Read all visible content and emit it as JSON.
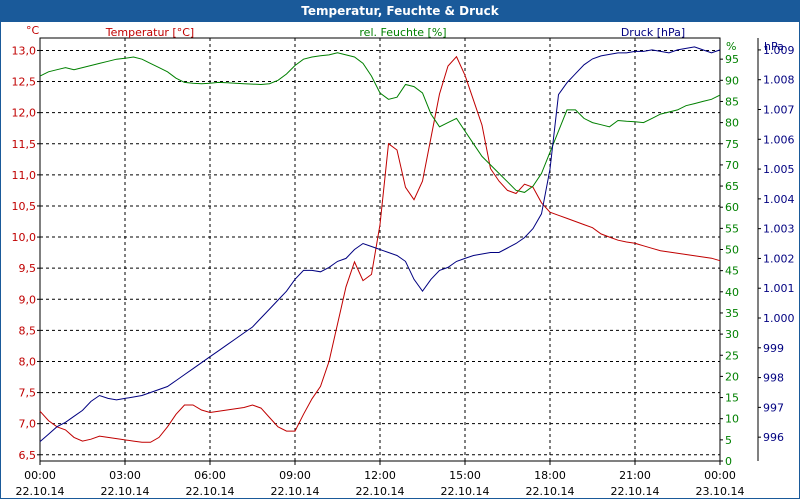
{
  "title": "Temperatur, Feuchte & Druck",
  "chart_data": {
    "type": "line",
    "title": "Temperatur, Feuchte & Druck",
    "x_ticks": [
      {
        "time": "00:00",
        "date": "22.10.14"
      },
      {
        "time": "03:00",
        "date": "22.10.14"
      },
      {
        "time": "06:00",
        "date": "22.10.14"
      },
      {
        "time": "09:00",
        "date": "22.10.14"
      },
      {
        "time": "12:00",
        "date": "22.10.14"
      },
      {
        "time": "15:00",
        "date": "22.10.14"
      },
      {
        "time": "18:00",
        "date": "22.10.14"
      },
      {
        "time": "21:00",
        "date": "22.10.14"
      },
      {
        "time": "00:00",
        "date": "23.10.14"
      }
    ],
    "xlim_hours": [
      0,
      24
    ],
    "grid": true,
    "axes": {
      "temperature": {
        "label": "Temperatur [°C]",
        "unit": "°C",
        "ylim": [
          6.4,
          13.2
        ],
        "ticks": [
          "6,5",
          "7,0",
          "7,5",
          "8,0",
          "8,5",
          "9,0",
          "9,5",
          "10,0",
          "10,5",
          "11,0",
          "11,5",
          "12,0",
          "12,5",
          "13,0"
        ],
        "color": "#c00000"
      },
      "humidity": {
        "label": "rel. Feuchte [%]",
        "unit": "%",
        "ylim": [
          0,
          100
        ],
        "ticks": [
          "0",
          "5",
          "10",
          "15",
          "20",
          "25",
          "30",
          "35",
          "40",
          "45",
          "50",
          "55",
          "60",
          "65",
          "70",
          "75",
          "80",
          "85",
          "90",
          "95"
        ],
        "color": "#008000"
      },
      "pressure": {
        "label": "Druck [hPa]",
        "unit": "hPa",
        "ylim": [
          995.2,
          1009.4
        ],
        "ticks": [
          "996",
          "997",
          "998",
          "999",
          "1.000",
          "1.001",
          "1.002",
          "1.003",
          "1.004",
          "1.005",
          "1.006",
          "1.007",
          "1.008",
          "1.009"
        ],
        "color": "#000080"
      }
    },
    "series": [
      {
        "name": "Temperatur [°C]",
        "axis": "temperature",
        "x": [
          0,
          0.3,
          0.6,
          0.9,
          1.2,
          1.5,
          1.8,
          2.1,
          2.4,
          2.7,
          3.0,
          3.3,
          3.6,
          3.9,
          4.2,
          4.5,
          4.8,
          5.1,
          5.4,
          5.7,
          6.0,
          6.3,
          6.6,
          6.9,
          7.2,
          7.5,
          7.8,
          8.1,
          8.4,
          8.7,
          9.0,
          9.3,
          9.6,
          9.9,
          10.2,
          10.5,
          10.8,
          11.1,
          11.4,
          11.7,
          12.0,
          12.3,
          12.6,
          12.9,
          13.2,
          13.5,
          13.8,
          14.1,
          14.4,
          14.7,
          15.0,
          15.3,
          15.6,
          15.9,
          16.2,
          16.5,
          16.8,
          17.1,
          17.4,
          17.7,
          18.0,
          18.3,
          18.6,
          18.9,
          19.2,
          19.5,
          19.8,
          20.1,
          20.4,
          20.7,
          21.0,
          21.3,
          21.6,
          21.9,
          22.2,
          22.5,
          22.8,
          23.1,
          23.4,
          23.7,
          24.0
        ],
        "values": [
          7.2,
          7.05,
          6.95,
          6.9,
          6.78,
          6.72,
          6.75,
          6.8,
          6.78,
          6.76,
          6.74,
          6.72,
          6.7,
          6.7,
          6.78,
          6.95,
          7.15,
          7.3,
          7.3,
          7.22,
          7.18,
          7.2,
          7.22,
          7.24,
          7.26,
          7.3,
          7.25,
          7.1,
          6.95,
          6.88,
          6.88,
          7.15,
          7.4,
          7.6,
          8.0,
          8.6,
          9.2,
          9.6,
          9.3,
          9.4,
          10.2,
          11.5,
          11.4,
          10.8,
          10.6,
          10.9,
          11.6,
          12.3,
          12.75,
          12.9,
          12.6,
          12.2,
          11.8,
          11.1,
          10.9,
          10.75,
          10.7,
          10.85,
          10.8,
          10.55,
          10.4,
          10.35,
          10.3,
          10.25,
          10.2,
          10.15,
          10.05,
          10.0,
          9.95,
          9.92,
          9.9,
          9.86,
          9.82,
          9.78,
          9.76,
          9.74,
          9.72,
          9.7,
          9.68,
          9.66,
          9.62
        ]
      },
      {
        "name": "rel. Feuchte [%]",
        "axis": "humidity",
        "x": [
          0,
          0.3,
          0.6,
          0.9,
          1.2,
          1.5,
          1.8,
          2.1,
          2.4,
          2.7,
          3.0,
          3.3,
          3.6,
          3.9,
          4.2,
          4.5,
          4.8,
          5.1,
          5.4,
          5.7,
          6.0,
          6.3,
          6.6,
          6.9,
          7.2,
          7.5,
          7.8,
          8.1,
          8.4,
          8.7,
          9.0,
          9.3,
          9.6,
          9.9,
          10.2,
          10.5,
          10.8,
          11.1,
          11.4,
          11.7,
          12.0,
          12.3,
          12.6,
          12.9,
          13.2,
          13.5,
          13.8,
          14.1,
          14.4,
          14.7,
          15.0,
          15.3,
          15.6,
          15.9,
          16.2,
          16.5,
          16.8,
          17.1,
          17.4,
          17.7,
          18.0,
          18.3,
          18.6,
          18.9,
          19.2,
          19.5,
          19.8,
          20.1,
          20.4,
          20.7,
          21.0,
          21.3,
          21.6,
          21.9,
          22.2,
          22.5,
          22.8,
          23.1,
          23.4,
          23.7,
          24.0
        ],
        "values": [
          91,
          92,
          92.5,
          93,
          92.5,
          93,
          93.5,
          94,
          94.5,
          95,
          95.2,
          95.5,
          95,
          94,
          93,
          92,
          90.5,
          89.5,
          89.3,
          89.2,
          89.3,
          89.5,
          89.4,
          89.3,
          89.2,
          89.1,
          89,
          89.2,
          90,
          91.5,
          93.5,
          95,
          95.5,
          95.8,
          96,
          96.5,
          96,
          95.5,
          94,
          91,
          87,
          85.5,
          86,
          89,
          88.5,
          87,
          82,
          79,
          80,
          81,
          78,
          75,
          72,
          70,
          68,
          66,
          64,
          63.5,
          65,
          68,
          73,
          78,
          83,
          83,
          81,
          80,
          79.5,
          79,
          80.5,
          80.3,
          80.2,
          80,
          81,
          82,
          82.5,
          83,
          84,
          84.5,
          85,
          85.5,
          86.5
        ]
      },
      {
        "name": "Druck [hPa]",
        "axis": "pressure",
        "x": [
          0,
          0.3,
          0.6,
          0.9,
          1.2,
          1.5,
          1.8,
          2.1,
          2.4,
          2.7,
          3.0,
          3.3,
          3.6,
          3.9,
          4.2,
          4.5,
          4.8,
          5.1,
          5.4,
          5.7,
          6.0,
          6.3,
          6.6,
          6.9,
          7.2,
          7.5,
          7.8,
          8.1,
          8.4,
          8.7,
          9.0,
          9.3,
          9.6,
          9.9,
          10.2,
          10.5,
          10.8,
          11.1,
          11.4,
          11.7,
          12.0,
          12.3,
          12.6,
          12.9,
          13.2,
          13.5,
          13.8,
          14.1,
          14.4,
          14.7,
          15.0,
          15.3,
          15.6,
          15.9,
          16.2,
          16.5,
          16.8,
          17.1,
          17.4,
          17.7,
          18.0,
          18.3,
          18.6,
          18.9,
          19.2,
          19.5,
          19.8,
          20.1,
          20.4,
          20.7,
          21.0,
          21.3,
          21.6,
          21.9,
          22.2,
          22.5,
          22.8,
          23.1,
          23.4,
          23.7,
          24.0
        ],
        "values": [
          995.85,
          996.1,
          996.35,
          996.5,
          996.7,
          996.9,
          997.2,
          997.4,
          997.3,
          997.25,
          997.3,
          997.35,
          997.4,
          997.5,
          997.6,
          997.7,
          997.9,
          998.1,
          998.3,
          998.5,
          998.7,
          998.9,
          999.1,
          999.3,
          999.5,
          999.7,
          1000,
          1000.3,
          1000.6,
          1000.9,
          1001.3,
          1001.6,
          1001.6,
          1001.55,
          1001.7,
          1001.9,
          1002.0,
          1002.3,
          1002.5,
          1002.4,
          1002.3,
          1002.2,
          1002.1,
          1001.9,
          1001.3,
          1000.9,
          1001.3,
          1001.6,
          1001.7,
          1001.9,
          1002.0,
          1002.1,
          1002.15,
          1002.2,
          1002.2,
          1002.35,
          1002.5,
          1002.7,
          1003.0,
          1003.5,
          1005.0,
          1007.5,
          1007.9,
          1008.2,
          1008.5,
          1008.7,
          1008.8,
          1008.85,
          1008.9,
          1008.9,
          1008.95,
          1008.95,
          1009.0,
          1008.95,
          1008.9,
          1009.0,
          1009.05,
          1009.1,
          1009.0,
          1008.9,
          1009.0
        ]
      }
    ]
  }
}
